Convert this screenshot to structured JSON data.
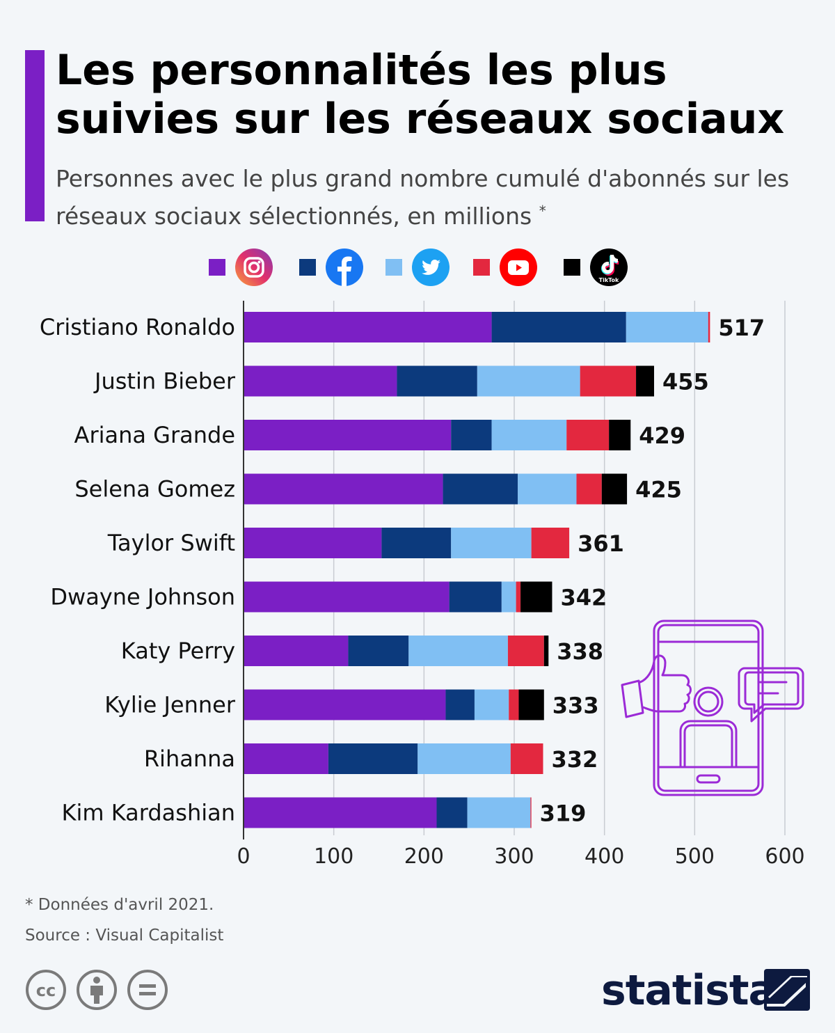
{
  "title": "Les personnalités les plus suivies sur les réseaux sociaux",
  "subtitle": "Personnes avec le plus grand nombre cumulé d'abonnés sur les réseaux sociaux sélectionnés, en millions",
  "subtitle_mark": "*",
  "legend": [
    {
      "icon": "instagram-icon",
      "color": "#7b1fc5"
    },
    {
      "icon": "facebook-icon",
      "color": "#0c3a7d"
    },
    {
      "icon": "twitter-icon",
      "color": "#80bff3"
    },
    {
      "icon": "youtube-icon",
      "color": "#e3283f"
    },
    {
      "icon": "tiktok-icon",
      "color": "#000000",
      "text": "TikTok"
    }
  ],
  "chart_data": {
    "type": "bar",
    "orientation": "horizontal",
    "stacked": true,
    "categories": [
      "Cristiano Ronaldo",
      "Justin Bieber",
      "Ariana Grande",
      "Selena Gomez",
      "Taylor Swift",
      "Dwayne Johnson",
      "Katy Perry",
      "Kylie Jenner",
      "Rihanna",
      "Kim Kardashian"
    ],
    "totals": [
      517,
      455,
      429,
      425,
      361,
      342,
      338,
      333,
      332,
      319
    ],
    "series": [
      {
        "platform": "Instagram",
        "color": "#7b1fc5",
        "values": [
          275,
          170,
          230,
          221,
          153,
          228,
          116,
          224,
          94,
          214
        ]
      },
      {
        "platform": "Facebook",
        "color": "#0c3a7d",
        "values": [
          149,
          89,
          45,
          83,
          77,
          58,
          67,
          32,
          99,
          34
        ]
      },
      {
        "platform": "Twitter",
        "color": "#80bff3",
        "values": [
          91,
          114,
          83,
          65,
          89,
          16,
          110,
          38,
          103,
          70
        ]
      },
      {
        "platform": "YouTube",
        "color": "#e3283f",
        "values": [
          2,
          62,
          47,
          28,
          42,
          5,
          40,
          11,
          36,
          1
        ]
      },
      {
        "platform": "TikTok",
        "color": "#000000",
        "values": [
          0,
          20,
          24,
          28,
          0,
          35,
          5,
          28,
          0,
          0
        ]
      }
    ],
    "xlim": [
      0,
      600
    ],
    "xticks": [
      0,
      100,
      200,
      300,
      400,
      500,
      600
    ],
    "grid": true
  },
  "footnote": "* Données d'avril 2021.",
  "source": "Source : Visual Capitalist",
  "brand": "statista"
}
